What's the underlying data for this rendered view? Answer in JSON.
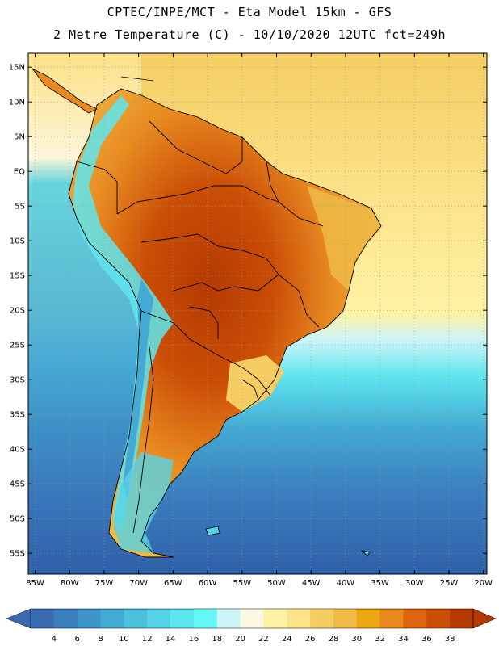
{
  "title_line1": "CPTEC/INPE/MCT -  Eta Model 15km - GFS",
  "title_line2": "2 Metre Temperature (C) - 10/10/2020 12UTC fct=249h",
  "map": {
    "lon_range": [
      -86,
      -19.5
    ],
    "lat_range": [
      -58,
      17
    ],
    "lon_ticks": [
      {
        "value": -85,
        "label": "85W"
      },
      {
        "value": -80,
        "label": "80W"
      },
      {
        "value": -75,
        "label": "75W"
      },
      {
        "value": -70,
        "label": "70W"
      },
      {
        "value": -65,
        "label": "65W"
      },
      {
        "value": -60,
        "label": "60W"
      },
      {
        "value": -55,
        "label": "55W"
      },
      {
        "value": -50,
        "label": "50W"
      },
      {
        "value": -45,
        "label": "45W"
      },
      {
        "value": -40,
        "label": "40W"
      },
      {
        "value": -35,
        "label": "35W"
      },
      {
        "value": -30,
        "label": "30W"
      },
      {
        "value": -25,
        "label": "25W"
      },
      {
        "value": -20,
        "label": "20W"
      }
    ],
    "lat_ticks": [
      {
        "value": 15,
        "label": "15N"
      },
      {
        "value": 10,
        "label": "10N"
      },
      {
        "value": 5,
        "label": "5N"
      },
      {
        "value": 0,
        "label": "EQ"
      },
      {
        "value": -5,
        "label": "5S"
      },
      {
        "value": -10,
        "label": "10S"
      },
      {
        "value": -15,
        "label": "15S"
      },
      {
        "value": -20,
        "label": "20S"
      },
      {
        "value": -25,
        "label": "25S"
      },
      {
        "value": -30,
        "label": "30S"
      },
      {
        "value": -35,
        "label": "35S"
      },
      {
        "value": -40,
        "label": "40S"
      },
      {
        "value": -45,
        "label": "45S"
      },
      {
        "value": -50,
        "label": "50S"
      },
      {
        "value": -55,
        "label": "55S"
      }
    ]
  },
  "colorbar": {
    "levels": [
      "4",
      "6",
      "8",
      "10",
      "12",
      "14",
      "16",
      "18",
      "20",
      "22",
      "24",
      "26",
      "28",
      "30",
      "32",
      "34",
      "36",
      "38"
    ],
    "colors": [
      "#3a6ab0",
      "#3b7fbf",
      "#3d95c9",
      "#43aad3",
      "#4cc0dd",
      "#56d3e6",
      "#5ee6ee",
      "#66f6f6",
      "#cdf4f8",
      "#fdf8e4",
      "#fef3a5",
      "#fce389",
      "#f5cd62",
      "#efba45",
      "#eda712",
      "#e88a20",
      "#dd6411",
      "#cb4e05",
      "#b53a02"
    ],
    "low_end_color": "#3a6ab0",
    "high_end_color": "#b53a02"
  },
  "colors": {
    "ocean_south": "#3060a8",
    "ocean_mid": "#4cc0dd",
    "ocean_warm": "#fce389",
    "land_hot": "#cb4e05",
    "land_warm": "#e88a20",
    "andes_cold": "#5ee6ee",
    "border": "#000000"
  }
}
